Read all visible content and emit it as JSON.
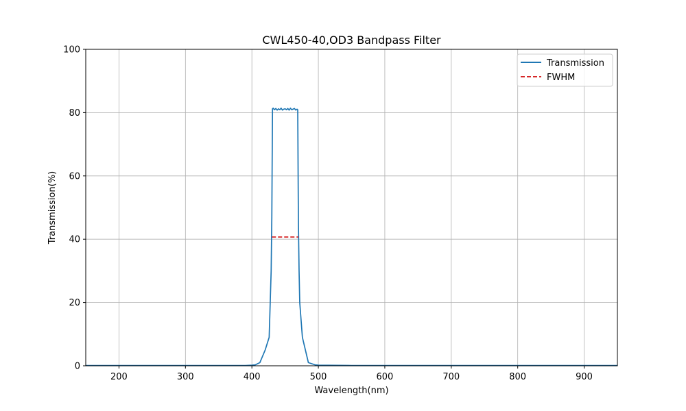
{
  "chart_data": {
    "type": "line",
    "title": "CWL450-40,OD3 Bandpass Filter",
    "xlabel": "Wavelength(nm)",
    "ylabel": "Transmission(%)",
    "xlim": [
      150,
      950
    ],
    "ylim": [
      0,
      100
    ],
    "xticks": [
      200,
      300,
      400,
      500,
      600,
      700,
      800,
      900
    ],
    "yticks": [
      0,
      20,
      40,
      60,
      80,
      100
    ],
    "grid": true,
    "legend_position": "top-right",
    "series": [
      {
        "name": "Transmission",
        "color": "#1f77b4",
        "style": "solid",
        "x": [
          150,
          200,
          250,
          300,
          350,
          390,
          400,
          405,
          412,
          420,
          426,
          429,
          430,
          431,
          432,
          434,
          436,
          438,
          440,
          442,
          444,
          446,
          448,
          450,
          452,
          454,
          456,
          458,
          460,
          462,
          464,
          466,
          468,
          469,
          470,
          471,
          472,
          476,
          485,
          495,
          500,
          550,
          600,
          700,
          800,
          900,
          950
        ],
        "y": [
          0.1,
          0.1,
          0.1,
          0.1,
          0.1,
          0.1,
          0.2,
          0.3,
          1.0,
          5.0,
          9.0,
          30.0,
          47.0,
          81.2,
          81.4,
          80.9,
          81.3,
          80.8,
          81.2,
          80.9,
          81.4,
          80.8,
          81.1,
          81.2,
          80.9,
          81.3,
          80.8,
          81.4,
          80.9,
          81.1,
          81.3,
          80.8,
          81.1,
          80.9,
          45.0,
          30.0,
          20.0,
          9.0,
          1.0,
          0.3,
          0.2,
          0.1,
          0.1,
          0.1,
          0.1,
          0.1,
          0.1
        ]
      },
      {
        "name": "FWHM",
        "color": "#d62728",
        "style": "dashed",
        "x": [
          430,
          470
        ],
        "y": [
          40.7,
          40.7
        ]
      }
    ]
  }
}
